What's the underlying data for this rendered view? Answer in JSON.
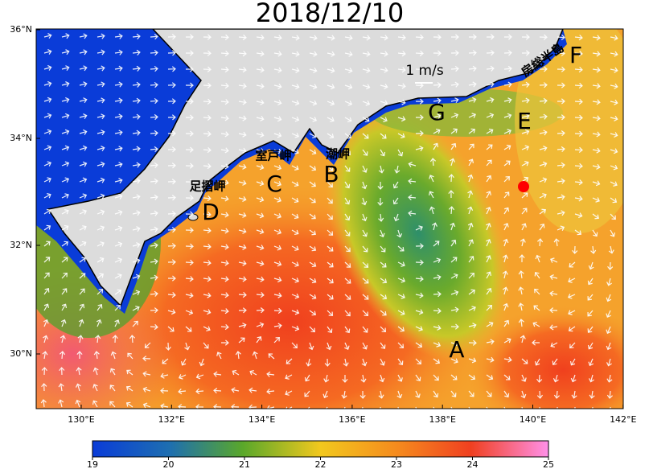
{
  "title": "2018/12/10",
  "map": {
    "lat_labels": [
      "36°N",
      "34°N",
      "32°N",
      "30°N"
    ],
    "lon_labels": [
      "130°E",
      "132°E",
      "134°E",
      "136°E",
      "138°E",
      "140°E",
      "142°E"
    ],
    "points": [
      "A",
      "B",
      "C",
      "D",
      "E",
      "F",
      "G"
    ],
    "place_names": [
      "室戸岬",
      "潮岬",
      "足摺岬",
      "房総半島"
    ],
    "scale_label": "1 m/s"
  },
  "colorbar": {
    "range": [
      19,
      25
    ],
    "ticks": [
      19,
      20,
      21,
      22,
      23,
      24,
      25
    ]
  }
}
